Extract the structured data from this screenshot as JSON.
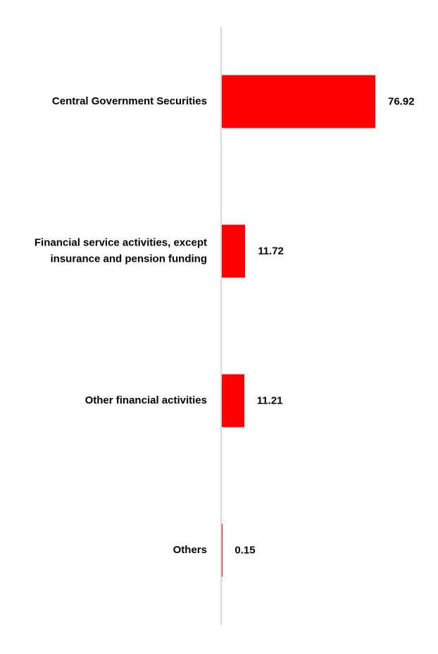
{
  "chart_data": {
    "type": "bar",
    "orientation": "horizontal",
    "title": "",
    "xlabel": "",
    "ylabel": "",
    "categories": [
      "Central Government Securities",
      "Financial service activities, except insurance and pension funding",
      "Other financial activities",
      "Others"
    ],
    "values": [
      76.92,
      11.72,
      11.21,
      0.15
    ],
    "value_labels": [
      "76.92",
      "11.72",
      "11.21",
      "0.15"
    ],
    "xlim": [
      0,
      80
    ],
    "grid": false,
    "legend_position": "none",
    "data_labels": "outside-end",
    "colors": {
      "bar": "#FF0000",
      "axis_line": "#D9D9D9",
      "label_text": "#000000",
      "background": "#FFFFFF"
    }
  }
}
